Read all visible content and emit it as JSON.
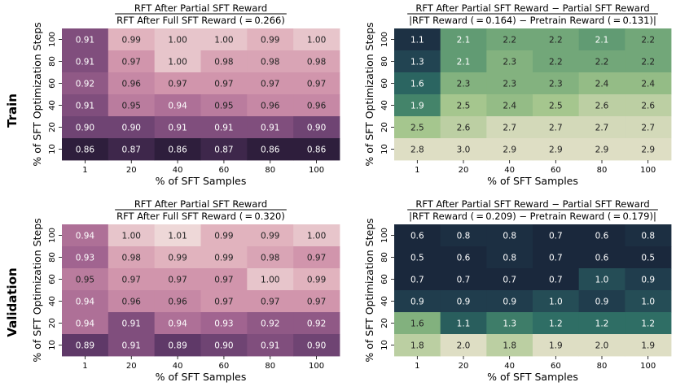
{
  "row_labels": [
    "Train",
    "Validation"
  ],
  "chart_data": [
    {
      "type": "heatmap",
      "id": "train-ratio",
      "colormap": "purple",
      "title_numerator": "RFT After Partial SFT Reward",
      "title_denominator": "RFT After Full SFT Reward ( = 0.266)",
      "xlabel": "% of SFT Samples",
      "ylabel": "% of SFT Optimization Steps",
      "x_categories": [
        "1",
        "20",
        "40",
        "60",
        "80",
        "100"
      ],
      "y_categories": [
        "100",
        "80",
        "60",
        "40",
        "20",
        "10"
      ],
      "values": [
        [
          0.91,
          0.99,
          1.0,
          1.0,
          0.99,
          1.0
        ],
        [
          0.91,
          0.97,
          1.0,
          0.98,
          0.98,
          0.98
        ],
        [
          0.92,
          0.96,
          0.97,
          0.97,
          0.97,
          0.97
        ],
        [
          0.91,
          0.95,
          0.94,
          0.95,
          0.96,
          0.96
        ],
        [
          0.9,
          0.9,
          0.91,
          0.91,
          0.91,
          0.9
        ],
        [
          0.86,
          0.87,
          0.86,
          0.87,
          0.86,
          0.86
        ]
      ],
      "decimals": 2,
      "vmin": 0.86,
      "vmax": 1.01
    },
    {
      "type": "heatmap",
      "id": "train-diff",
      "colormap": "green",
      "title_numerator": "RFT After Partial SFT Reward − Partial SFT Reward",
      "title_denominator": "|RFT Reward ( = 0.164) − Pretrain Reward ( = 0.131)|",
      "xlabel": "% of SFT Samples",
      "ylabel": "% of SFT Optimization Steps",
      "x_categories": [
        "1",
        "20",
        "40",
        "60",
        "80",
        "100"
      ],
      "y_categories": [
        "100",
        "80",
        "60",
        "40",
        "20",
        "10"
      ],
      "values": [
        [
          1.1,
          2.1,
          2.2,
          2.2,
          2.1,
          2.2
        ],
        [
          1.3,
          2.1,
          2.3,
          2.2,
          2.2,
          2.2
        ],
        [
          1.6,
          2.3,
          2.3,
          2.3,
          2.4,
          2.4
        ],
        [
          1.9,
          2.5,
          2.4,
          2.5,
          2.6,
          2.6
        ],
        [
          2.5,
          2.6,
          2.7,
          2.7,
          2.7,
          2.7
        ],
        [
          2.8,
          3.0,
          2.9,
          2.9,
          2.9,
          2.9
        ]
      ],
      "decimals": 1,
      "vmin": 1.0,
      "vmax": 2.75
    },
    {
      "type": "heatmap",
      "id": "val-ratio",
      "colormap": "purple",
      "title_numerator": "RFT After Partial SFT Reward",
      "title_denominator": "RFT After Full SFT Reward ( = 0.320)",
      "xlabel": "% of SFT Samples",
      "ylabel": "% of SFT Optimization Steps",
      "x_categories": [
        "1",
        "20",
        "40",
        "60",
        "80",
        "100"
      ],
      "y_categories": [
        "100",
        "80",
        "60",
        "40",
        "20",
        "10"
      ],
      "values": [
        [
          0.94,
          1.0,
          1.01,
          0.99,
          0.99,
          1.0
        ],
        [
          0.93,
          0.98,
          0.99,
          0.99,
          0.98,
          0.97
        ],
        [
          0.95,
          0.97,
          0.97,
          0.97,
          1.0,
          0.99
        ],
        [
          0.94,
          0.96,
          0.96,
          0.97,
          0.97,
          0.97
        ],
        [
          0.94,
          0.91,
          0.94,
          0.93,
          0.92,
          0.92
        ],
        [
          0.89,
          0.91,
          0.89,
          0.9,
          0.91,
          0.9
        ]
      ],
      "decimals": 2,
      "vmin": 0.86,
      "vmax": 1.01
    },
    {
      "type": "heatmap",
      "id": "val-diff",
      "colormap": "green",
      "title_numerator": "RFT After Partial SFT Reward − Partial SFT Reward",
      "title_denominator": "|RFT Reward ( = 0.209) − Pretrain Reward ( = 0.179)|",
      "xlabel": "% of SFT Samples",
      "ylabel": "% of SFT Optimization Steps",
      "x_categories": [
        "1",
        "20",
        "40",
        "60",
        "80",
        "100"
      ],
      "y_categories": [
        "100",
        "80",
        "60",
        "40",
        "20",
        "10"
      ],
      "values": [
        [
          0.6,
          0.8,
          0.8,
          0.7,
          0.6,
          0.8
        ],
        [
          0.5,
          0.6,
          0.8,
          0.7,
          0.6,
          0.5
        ],
        [
          0.7,
          0.7,
          0.7,
          0.7,
          1.0,
          0.9
        ],
        [
          0.9,
          0.9,
          0.9,
          1.0,
          0.9,
          1.0
        ],
        [
          1.6,
          1.1,
          1.3,
          1.2,
          1.2,
          1.2
        ],
        [
          1.8,
          2.0,
          1.8,
          1.9,
          2.0,
          1.9
        ]
      ],
      "decimals": 1,
      "vmin": 0.75,
      "vmax": 1.9
    }
  ]
}
